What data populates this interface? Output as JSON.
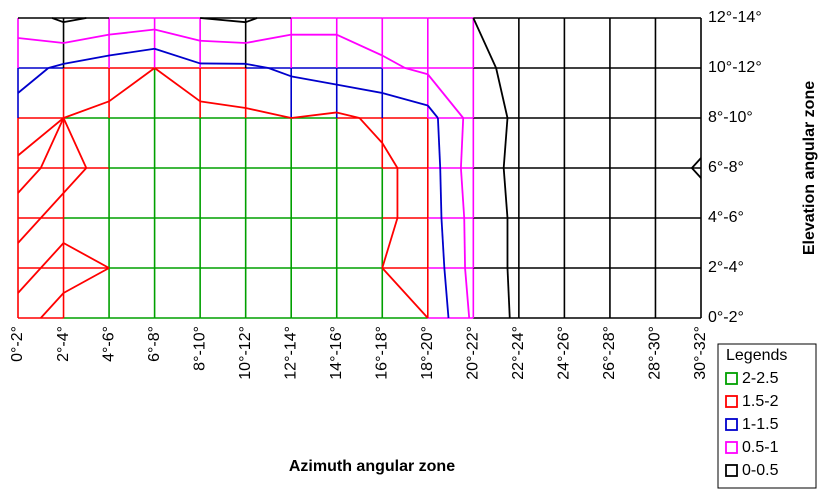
{
  "chart_data": {
    "type": "contour",
    "x_label": "Azimuth angular zone",
    "y_label": "Elevation angular zone",
    "legend_title": "Legends",
    "categories": [
      "0°-2°",
      "2°-4°",
      "4°-6°",
      "6°-8°",
      "8°-10°",
      "10°-12°",
      "12°-14°",
      "14°-16°",
      "16°-18°",
      "18°-20°",
      "20°-22°",
      "22°-24°",
      "24°-26°",
      "26°-28°",
      "28°-30°",
      "30°-32°"
    ],
    "y_categories": [
      "0°-2°",
      "2°-4°",
      "4°-6°",
      "6°-8°",
      "8°-10°",
      "10°-12°",
      "12°-14°"
    ],
    "bands": [
      {
        "name": "2-2.5",
        "color": "#00a000",
        "range": [
          2,
          2.5
        ]
      },
      {
        "name": "1.5-2",
        "color": "#ff0000",
        "range": [
          1.5,
          2
        ]
      },
      {
        "name": "1-1.5",
        "color": "#0000cc",
        "range": [
          1,
          1.5
        ]
      },
      {
        "name": "0.5-1",
        "color": "#ff00ff",
        "range": [
          0.5,
          1
        ]
      },
      {
        "name": "0-0.5",
        "color": "#000000",
        "range": [
          0,
          0.5
        ]
      }
    ],
    "values": [
      [
        1.9,
        2.1,
        2.1,
        2.0,
        2.1,
        2.0,
        2.1,
        2.1,
        2.1,
        2.0,
        0.9,
        0.4,
        0.3,
        0.3,
        0.3,
        0.3
      ],
      [
        2.1,
        1.9,
        2.0,
        2.1,
        2.0,
        2.1,
        2.0,
        2.1,
        2.0,
        1.9,
        0.8,
        0.4,
        0.3,
        0.3,
        0.3,
        0.3
      ],
      [
        1.9,
        2.1,
        2.0,
        2.1,
        2.1,
        2.0,
        2.1,
        2.1,
        2.1,
        1.8,
        0.8,
        0.4,
        0.3,
        0.3,
        0.3,
        0.3
      ],
      [
        2.1,
        1.9,
        2.1,
        2.1,
        2.0,
        2.2,
        2.1,
        2.0,
        2.1,
        1.8,
        0.7,
        0.4,
        0.3,
        0.3,
        0.3,
        0.55
      ],
      [
        1.7,
        2.0,
        2.1,
        2.1,
        2.2,
        2.1,
        2.0,
        2.1,
        1.9,
        1.7,
        0.8,
        0.4,
        0.3,
        0.3,
        0.3,
        0.3
      ],
      [
        1.3,
        1.6,
        1.8,
        2.0,
        1.6,
        1.6,
        1.4,
        1.2,
        1.1,
        0.9,
        0.7,
        0.3,
        0.3,
        0.3,
        0.3,
        0.3
      ],
      [
        0.8,
        0.4,
        0.6,
        0.7,
        0.5,
        0.4,
        0.8,
        0.9,
        0.7,
        0.6,
        0.5,
        0.3,
        0.3,
        0.3,
        0.3,
        0.3
      ]
    ]
  }
}
